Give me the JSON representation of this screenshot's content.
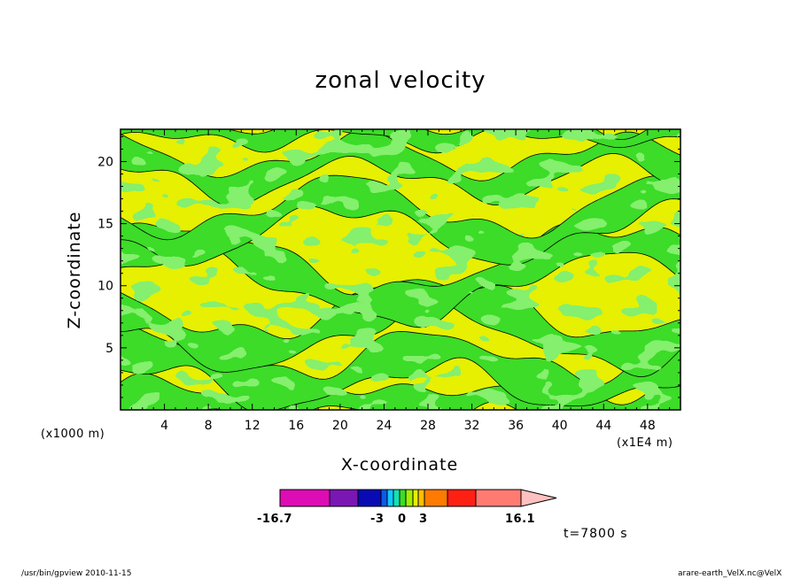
{
  "chart_data": {
    "type": "heatmap",
    "title": "zonal velocity",
    "xlabel": "X-coordinate",
    "ylabel": "Z-coordinate",
    "x_unit": "(x1000 m)",
    "x_scale": "(x1E4 m)",
    "x_ticks": [
      4,
      8,
      12,
      16,
      20,
      24,
      28,
      32,
      36,
      40,
      44,
      48
    ],
    "y_ticks": [
      5,
      10,
      15,
      20
    ],
    "xlim": [
      0,
      51
    ],
    "ylim": [
      0,
      22.6
    ],
    "colorbar": {
      "min_label": "-16.7",
      "max_label": "16.1",
      "tick_labels": [
        "-16.7",
        "-3",
        "0",
        "3",
        "16.1"
      ],
      "colors": [
        "#dd0cb4",
        "#7a16b4",
        "#0a0ab4",
        "#0c5ae6",
        "#10c8ff",
        "#14e1b4",
        "#3cdc28",
        "#a0f000",
        "#e6f000",
        "#ffbe00",
        "#ff7a00",
        "#ff2014",
        "#ff7b72",
        "#ffc0c0"
      ]
    },
    "dominant_levels": [
      {
        "range": "0 to 1",
        "color": "#e6f000"
      },
      {
        "range": "-1 to 0",
        "color": "#3cdc28"
      }
    ]
  },
  "time_label": "t=7800 s",
  "footer": {
    "left": "/usr/bin/gpview   2010-11-15",
    "right": "arare-earth_VelX.nc@VelX"
  }
}
